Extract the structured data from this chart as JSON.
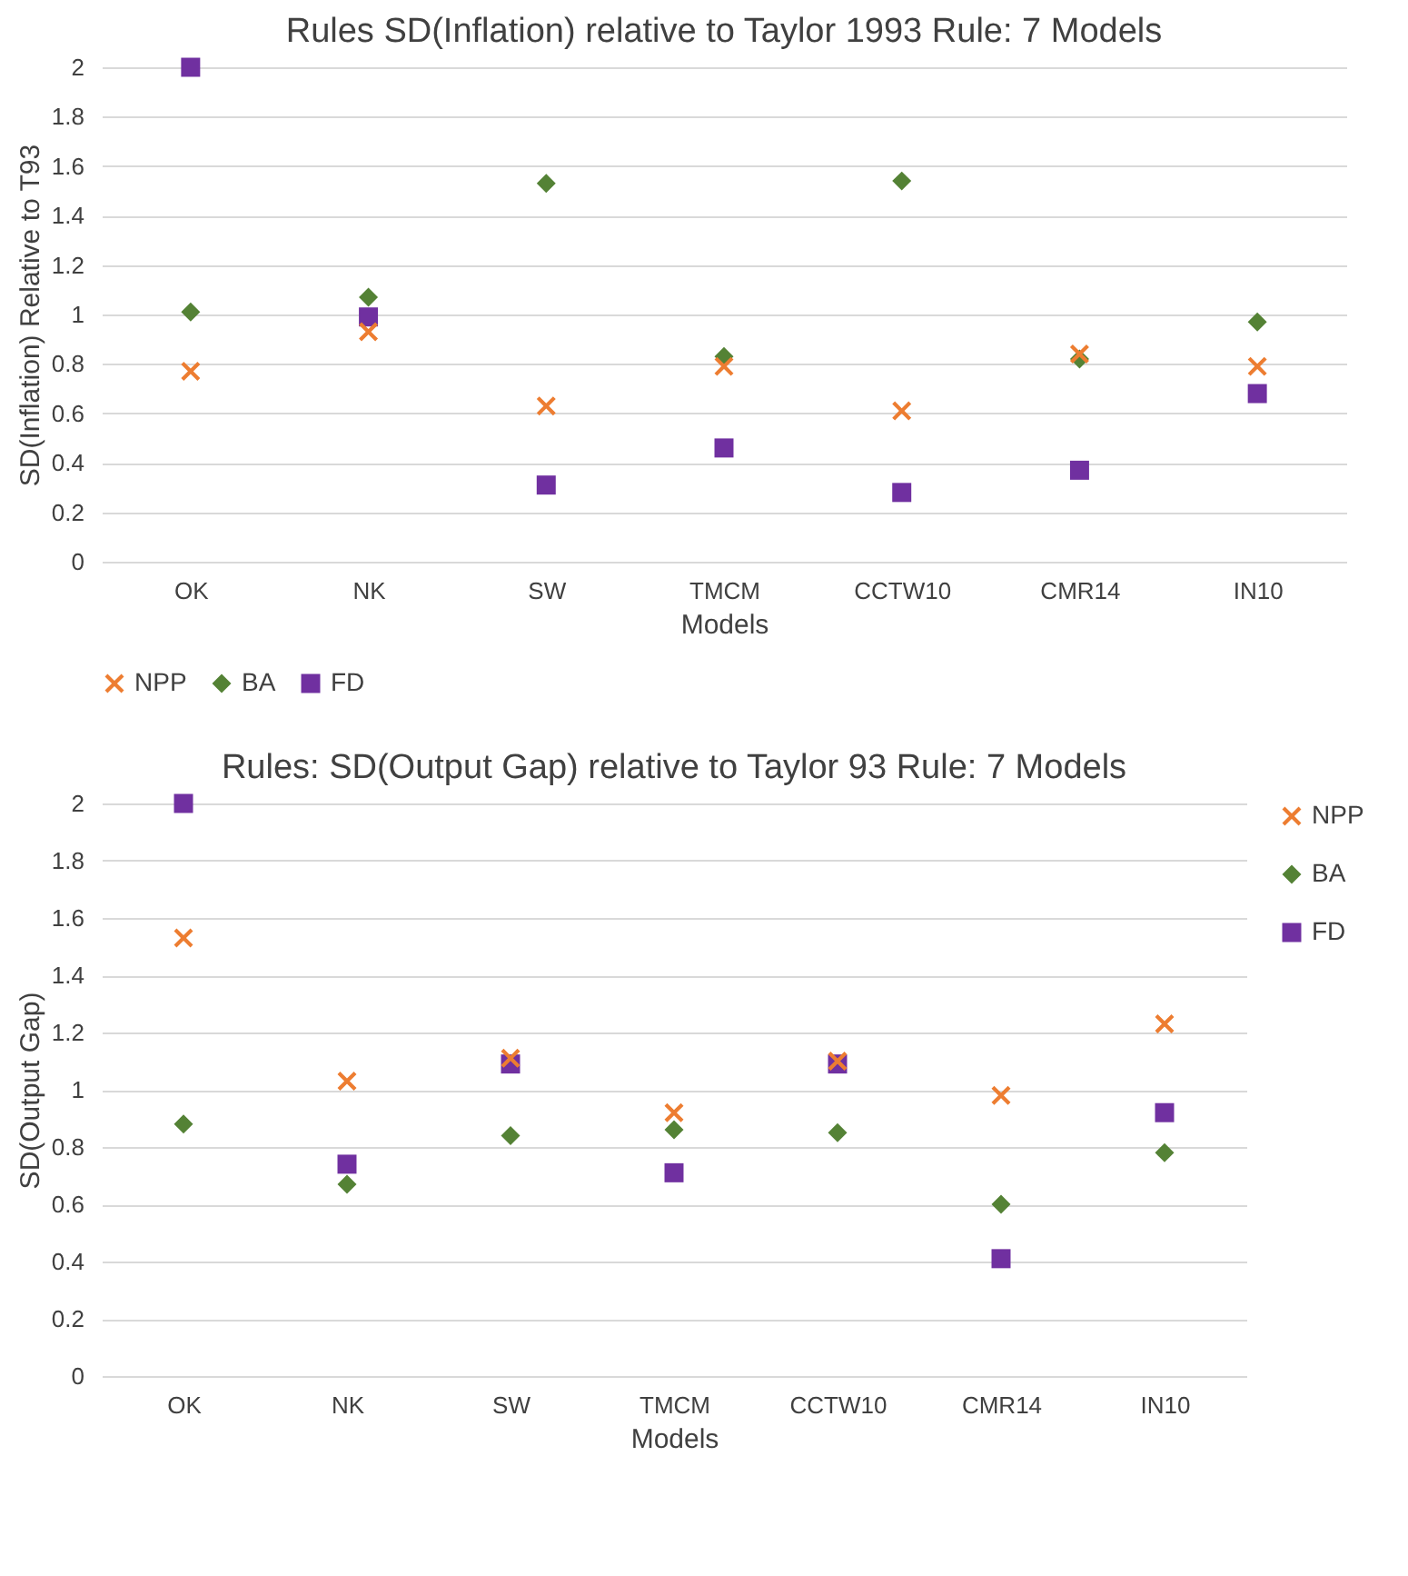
{
  "chart_data": [
    {
      "type": "scatter",
      "title": "Rules SD(Inflation) relative to Taylor 1993 Rule: 7 Models",
      "xlabel": "Models",
      "ylabel": "SD(Inflation) Relative to T93",
      "categories": [
        "OK",
        "NK",
        "SW",
        "TMCM",
        "CCTW10",
        "CMR14",
        "IN10"
      ],
      "series": [
        {
          "name": "NPP",
          "color": "#ed7d31",
          "marker": "cross",
          "values": [
            0.77,
            0.93,
            0.63,
            0.79,
            0.61,
            0.84,
            0.79
          ]
        },
        {
          "name": "BA",
          "color": "#548235",
          "marker": "diamond",
          "values": [
            1.01,
            1.07,
            1.53,
            0.83,
            1.54,
            0.82,
            0.97
          ]
        },
        {
          "name": "FD",
          "color": "#7030a0",
          "marker": "square",
          "values": [
            2.0,
            0.99,
            0.31,
            0.46,
            0.28,
            0.37,
            0.68
          ]
        }
      ],
      "ylim": [
        0,
        2
      ],
      "yticks": [
        0,
        0.2,
        0.4,
        0.6,
        0.8,
        1,
        1.2,
        1.4,
        1.6,
        1.8,
        2
      ],
      "grid": "y",
      "legend": "bottom"
    },
    {
      "type": "scatter",
      "title": "Rules: SD(Output Gap) relative to Taylor 93 Rule: 7 Models",
      "xlabel": "Models",
      "ylabel": "SD(Output Gap)",
      "categories": [
        "OK",
        "NK",
        "SW",
        "TMCM",
        "CCTW10",
        "CMR14",
        "IN10"
      ],
      "series": [
        {
          "name": "NPP",
          "color": "#ed7d31",
          "marker": "cross",
          "values": [
            1.53,
            1.03,
            1.11,
            0.92,
            1.1,
            0.98,
            1.23
          ]
        },
        {
          "name": "BA",
          "color": "#548235",
          "marker": "diamond",
          "values": [
            0.88,
            0.67,
            0.84,
            0.86,
            0.85,
            0.6,
            0.78
          ]
        },
        {
          "name": "FD",
          "color": "#7030a0",
          "marker": "square",
          "values": [
            2.0,
            0.74,
            1.09,
            0.71,
            1.09,
            0.41,
            0.92
          ]
        }
      ],
      "ylim": [
        0,
        2
      ],
      "yticks": [
        0,
        0.2,
        0.4,
        0.6,
        0.8,
        1,
        1.2,
        1.4,
        1.6,
        1.8,
        2
      ],
      "grid": "y",
      "legend": "right"
    }
  ]
}
